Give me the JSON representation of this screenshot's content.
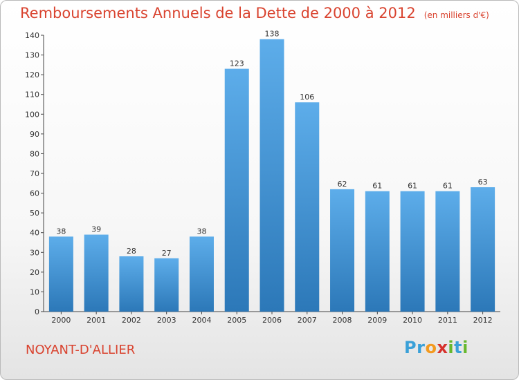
{
  "header": {
    "title": "Remboursements Annuels de la Dette de 2000 à 2012",
    "unit": "(en milliers d'€)"
  },
  "footer": {
    "commune": "NOYANT-D'ALLIER",
    "logo": {
      "text": "Proxiti",
      "letters": [
        {
          "char": "P",
          "color": "#3aa0d8"
        },
        {
          "char": "r",
          "color": "#3aa0d8"
        },
        {
          "char": "o",
          "color": "#f39a1f"
        },
        {
          "char": "x",
          "color": "#d6312c"
        },
        {
          "char": "i",
          "color": "#67b82e"
        },
        {
          "char": "t",
          "color": "#3aa0d8"
        },
        {
          "char": "i",
          "color": "#67b82e"
        }
      ]
    }
  },
  "colors": {
    "bar_top": "#5dadea",
    "bar_bottom": "#2c78b8",
    "title": "#d9432f"
  },
  "chart_data": {
    "type": "bar",
    "categories": [
      "2000",
      "2001",
      "2002",
      "2003",
      "2004",
      "2005",
      "2006",
      "2007",
      "2008",
      "2009",
      "2010",
      "2011",
      "2012"
    ],
    "values": [
      38,
      39,
      28,
      27,
      38,
      123,
      138,
      106,
      62,
      61,
      61,
      61,
      63
    ],
    "title": "Remboursements Annuels de la Dette de 2000 à 2012",
    "xlabel": "",
    "ylabel": "",
    "ylim": [
      0,
      140
    ],
    "yticks": [
      0,
      10,
      20,
      30,
      40,
      50,
      60,
      70,
      80,
      90,
      100,
      110,
      120,
      130,
      140
    ],
    "grid": false,
    "legend": "none"
  }
}
